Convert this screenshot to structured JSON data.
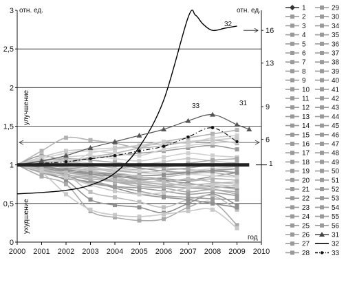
{
  "chart_data": {
    "type": "line",
    "x_ticks": [
      "2000",
      "2001",
      "2002",
      "2003",
      "2004",
      "2005",
      "2006",
      "2007",
      "2008",
      "2009",
      "2010"
    ],
    "xlabel": "год",
    "left_unit_label": "отн. ед.",
    "right_unit_label": "отн. ед.",
    "left_ylim": [
      0,
      3
    ],
    "left_ticks": [
      "0",
      "0,5",
      "1",
      "1,5",
      "2",
      "2,5",
      "3"
    ],
    "right_ticks": [
      "16",
      "13",
      "9",
      "6"
    ],
    "right_tick_values": [
      16,
      13,
      9,
      6
    ],
    "label_up": "улучшение",
    "label_down": "ухудшение",
    "baseline_label": "1",
    "annotations": [
      "32",
      "33",
      "31"
    ],
    "grid": "horizontal",
    "legend_position": "right",
    "legend_items": [
      "1",
      "2",
      "3",
      "4",
      "5",
      "6",
      "7",
      "8",
      "9",
      "10",
      "11",
      "12",
      "13",
      "14",
      "15",
      "16",
      "17",
      "18",
      "19",
      "20",
      "21",
      "22",
      "23",
      "24",
      "25",
      "26",
      "27",
      "28",
      "29",
      "30",
      "34",
      "35",
      "36",
      "37",
      "38",
      "39",
      "40",
      "41",
      "42",
      "43",
      "44",
      "45",
      "46",
      "47",
      "48",
      "49",
      "50",
      "51",
      "52",
      "53",
      "54",
      "55",
      "56",
      "31",
      "32",
      "33"
    ],
    "series": [
      {
        "name": "32",
        "axis": "right",
        "x": [
          2000,
          2001,
          2002,
          2003,
          2004,
          2005,
          2006,
          2007,
          2007.3,
          2007.6,
          2008,
          2008.5,
          2009
        ],
        "values": [
          1.0,
          1.12,
          1.32,
          1.8,
          2.9,
          5.3,
          9.6,
          17.2,
          17.4,
          16.6,
          16.0,
          16.2,
          16.4
        ]
      },
      {
        "name": "33",
        "x": [
          2000,
          2001,
          2002,
          2003,
          2004,
          2005,
          2006,
          2007,
          2008,
          2009
        ],
        "values": [
          1.0,
          1.02,
          1.04,
          1.08,
          1.12,
          1.18,
          1.24,
          1.36,
          1.48,
          1.3
        ]
      },
      {
        "name": "31",
        "x": [
          2000,
          2001,
          2002,
          2003,
          2004,
          2005,
          2006,
          2007,
          2008,
          2009,
          2009.5
        ],
        "values": [
          1.0,
          1.05,
          1.12,
          1.22,
          1.3,
          1.38,
          1.46,
          1.57,
          1.65,
          1.52,
          1.46
        ]
      },
      {
        "name": "1",
        "x": [
          2000,
          2009.5
        ],
        "values": [
          1.0,
          1.0
        ]
      },
      {
        "name": "2",
        "x": [
          2000,
          2001,
          2002,
          2003,
          2004,
          2005,
          2006,
          2007,
          2008,
          2009
        ],
        "values": [
          1.0,
          0.98,
          1.02,
          1.1,
          1.15,
          1.22,
          1.3,
          1.35,
          1.4,
          1.45
        ]
      },
      {
        "name": "3",
        "x": [
          2000,
          2001,
          2002,
          2003,
          2004,
          2005,
          2006,
          2007,
          2008,
          2009
        ],
        "values": [
          1.0,
          1.05,
          1.0,
          1.15,
          1.2,
          1.25,
          1.3,
          1.28,
          1.35,
          1.38
        ]
      },
      {
        "name": "4",
        "x": [
          2000,
          2001,
          2002,
          2003,
          2004,
          2005,
          2006,
          2007,
          2008,
          2009
        ],
        "values": [
          1.0,
          0.9,
          0.8,
          0.55,
          0.48,
          0.45,
          0.38,
          0.5,
          0.62,
          0.48
        ]
      },
      {
        "name": "5",
        "x": [
          2000,
          2001,
          2002,
          2003,
          2004,
          2005,
          2006,
          2007,
          2008,
          2009
        ],
        "values": [
          1.0,
          0.95,
          0.88,
          0.65,
          0.58,
          0.52,
          0.45,
          0.55,
          0.6,
          0.42
        ]
      },
      {
        "name": "6",
        "x": [
          2000,
          2001,
          2002,
          2003,
          2004,
          2005,
          2006,
          2007,
          2008,
          2009
        ],
        "values": [
          1.0,
          0.85,
          0.75,
          0.4,
          0.32,
          0.28,
          0.3,
          0.45,
          0.52,
          0.22
        ]
      },
      {
        "name": "7",
        "x": [
          2000,
          2001,
          2002,
          2003,
          2004,
          2005,
          2006,
          2007,
          2008,
          2009
        ],
        "values": [
          1.0,
          0.9,
          0.62,
          0.42,
          0.35,
          0.33,
          0.36,
          0.4,
          0.42,
          0.18
        ]
      },
      {
        "name": "8",
        "x": [
          2000,
          2001,
          2002,
          2003,
          2004,
          2005,
          2006,
          2007,
          2008,
          2009
        ],
        "values": [
          1.0,
          1.12,
          1.05,
          1.08,
          1.12,
          1.15,
          1.18,
          1.22,
          1.25,
          1.2
        ]
      },
      {
        "name": "9",
        "x": [
          2000,
          2001,
          2002,
          2003,
          2004,
          2005,
          2006,
          2007,
          2008,
          2009
        ],
        "values": [
          1.0,
          1.18,
          1.35,
          1.32,
          1.28,
          1.22,
          1.25,
          1.3,
          1.32,
          1.28
        ]
      },
      {
        "name": "10",
        "x": [
          2000,
          2001,
          2002,
          2003,
          2004,
          2005,
          2006,
          2007,
          2008,
          2009
        ],
        "values": [
          1.0,
          1.02,
          0.97,
          0.95,
          0.92,
          0.9,
          0.88,
          0.92,
          0.95,
          0.98
        ]
      },
      {
        "name": "11",
        "x": [
          2000,
          2001,
          2002,
          2003,
          2004,
          2005,
          2006,
          2007,
          2008,
          2009
        ],
        "values": [
          1.0,
          0.98,
          0.94,
          0.9,
          0.86,
          0.84,
          0.82,
          0.8,
          0.85,
          0.9
        ]
      },
      {
        "name": "12",
        "x": [
          2000,
          2001,
          2002,
          2003,
          2004,
          2005,
          2006,
          2007,
          2008,
          2009
        ],
        "values": [
          1.0,
          1.0,
          0.96,
          0.92,
          0.88,
          0.8,
          0.78,
          0.82,
          0.78,
          0.75
        ]
      },
      {
        "name": "13",
        "x": [
          2000,
          2001,
          2002,
          2003,
          2004,
          2005,
          2006,
          2007,
          2008,
          2009
        ],
        "values": [
          1.0,
          0.95,
          0.9,
          0.85,
          0.78,
          0.72,
          0.7,
          0.65,
          0.68,
          0.62
        ]
      },
      {
        "name": "14",
        "x": [
          2000,
          2001,
          2002,
          2003,
          2004,
          2005,
          2006,
          2007,
          2008,
          2009
        ],
        "values": [
          1.0,
          1.03,
          1.06,
          1.02,
          0.98,
          1.0,
          1.04,
          1.08,
          1.05,
          1.02
        ]
      },
      {
        "name": "15",
        "x": [
          2000,
          2001,
          2002,
          2003,
          2004,
          2005,
          2006,
          2007,
          2008,
          2009
        ],
        "values": [
          1.0,
          0.92,
          0.88,
          0.8,
          0.72,
          0.66,
          0.6,
          0.58,
          0.56,
          0.55
        ]
      },
      {
        "name": "16",
        "x": [
          2000,
          2001,
          2002,
          2003,
          2004,
          2005,
          2006,
          2007,
          2008,
          2009
        ],
        "values": [
          1.0,
          0.97,
          0.93,
          0.88,
          0.82,
          0.8,
          0.84,
          0.88,
          0.9,
          0.85
        ]
      },
      {
        "name": "17",
        "x": [
          2000,
          2001,
          2002,
          2003,
          2004,
          2005,
          2006,
          2007,
          2008,
          2009
        ],
        "values": [
          1.0,
          1.06,
          1.1,
          1.12,
          1.08,
          1.05,
          1.1,
          1.15,
          1.12,
          1.1
        ]
      },
      {
        "name": "18",
        "x": [
          2000,
          2001,
          2002,
          2003,
          2004,
          2005,
          2006,
          2007,
          2008,
          2009
        ],
        "values": [
          1.0,
          0.9,
          0.82,
          0.78,
          0.7,
          0.62,
          0.58,
          0.55,
          0.5,
          0.45
        ]
      },
      {
        "name": "19",
        "x": [
          2000,
          2001,
          2002,
          2003,
          2004,
          2005,
          2006,
          2007,
          2008,
          2009
        ],
        "values": [
          1.0,
          0.96,
          0.95,
          0.93,
          0.95,
          0.98,
          0.96,
          0.94,
          0.92,
          0.95
        ]
      },
      {
        "name": "20",
        "x": [
          2000,
          2001,
          2002,
          2003,
          2004,
          2005,
          2006,
          2007,
          2008,
          2009
        ],
        "values": [
          1.0,
          1.04,
          1.0,
          0.97,
          0.93,
          0.9,
          0.93,
          0.96,
          1.0,
          1.03
        ]
      },
      {
        "name": "21",
        "x": [
          2000,
          2001,
          2002,
          2003,
          2004,
          2005,
          2006,
          2007,
          2008,
          2009
        ],
        "values": [
          1.0,
          0.99,
          0.97,
          0.9,
          0.84,
          0.78,
          0.74,
          0.7,
          0.72,
          0.68
        ]
      },
      {
        "name": "22",
        "x": [
          2000,
          2001,
          2002,
          2003,
          2004,
          2005,
          2006,
          2007,
          2008,
          2009
        ],
        "values": [
          1.0,
          0.94,
          0.86,
          0.76,
          0.72,
          0.7,
          0.66,
          0.62,
          0.64,
          0.6
        ]
      },
      {
        "name": "23",
        "x": [
          2000,
          2001,
          2002,
          2003,
          2004,
          2005,
          2006,
          2007,
          2008,
          2009
        ],
        "values": [
          1.0,
          0.98,
          0.92,
          0.86,
          0.8,
          0.76,
          0.72,
          0.78,
          0.82,
          0.8
        ]
      },
      {
        "name": "24",
        "x": [
          2000,
          2001,
          2002,
          2003,
          2004,
          2005,
          2006,
          2007,
          2008,
          2009
        ],
        "values": [
          1.0,
          1.08,
          1.15,
          1.18,
          1.15,
          1.12,
          1.2,
          1.25,
          1.28,
          1.3
        ]
      },
      {
        "name": "25",
        "x": [
          2000,
          2001,
          2002,
          2003,
          2004,
          2005,
          2006,
          2007,
          2008,
          2009
        ],
        "values": [
          1.0,
          0.95,
          0.92,
          0.88,
          0.85,
          0.82,
          0.8,
          0.76,
          0.72,
          0.7
        ]
      },
      {
        "name": "26",
        "x": [
          2000,
          2001,
          2002,
          2003,
          2004,
          2005,
          2006,
          2007,
          2008,
          2009
        ],
        "values": [
          1.0,
          1.02,
          1.04,
          1.0,
          0.96,
          0.94,
          0.97,
          1.0,
          1.02,
          1.0
        ]
      },
      {
        "name": "27",
        "x": [
          2000,
          2001,
          2002,
          2003,
          2004,
          2005,
          2006,
          2007,
          2008,
          2009
        ],
        "values": [
          1.0,
          0.9,
          0.85,
          0.82,
          0.78,
          0.75,
          0.72,
          0.7,
          0.68,
          0.65
        ]
      },
      {
        "name": "28",
        "x": [
          2000,
          2001,
          2002,
          2003,
          2004,
          2005,
          2006,
          2007,
          2008,
          2009
        ],
        "values": [
          1.0,
          1.1,
          1.18,
          1.2,
          1.22,
          1.25,
          1.27,
          1.3,
          1.32,
          1.35
        ]
      },
      {
        "name": "29",
        "x": [
          2000,
          2001,
          2002,
          2003,
          2004,
          2005,
          2006,
          2007,
          2008,
          2009
        ],
        "values": [
          1.0,
          0.97,
          0.95,
          0.98,
          1.0,
          0.96,
          0.92,
          0.9,
          0.93,
          0.95
        ]
      },
      {
        "name": "30",
        "x": [
          2000,
          2001,
          2002,
          2003,
          2004,
          2005,
          2006,
          2007,
          2008,
          2009
        ],
        "values": [
          1.0,
          0.93,
          0.87,
          0.84,
          0.8,
          0.78,
          0.75,
          0.74,
          0.76,
          0.78
        ]
      },
      {
        "name": "34",
        "x": [
          2000,
          2001,
          2002,
          2003,
          2004,
          2005,
          2006,
          2007,
          2008,
          2009
        ],
        "values": [
          1.0,
          1.01,
          0.99,
          0.96,
          0.94,
          0.92,
          0.9,
          0.88,
          0.86,
          0.84
        ]
      },
      {
        "name": "35",
        "x": [
          2000,
          2001,
          2002,
          2003,
          2004,
          2005,
          2006,
          2007,
          2008,
          2009
        ],
        "values": [
          1.0,
          0.97,
          0.93,
          0.9,
          0.88,
          0.86,
          0.87,
          0.9,
          0.92,
          0.9
        ]
      },
      {
        "name": "36",
        "x": [
          2000,
          2001,
          2002,
          2003,
          2004,
          2005,
          2006,
          2007,
          2008,
          2009
        ],
        "values": [
          1.0,
          0.95,
          0.9,
          0.95,
          0.9,
          0.85,
          0.78,
          0.72,
          0.7,
          0.74
        ]
      },
      {
        "name": "37",
        "x": [
          2000,
          2001,
          2002,
          2003,
          2004,
          2005,
          2006,
          2007,
          2008,
          2009
        ],
        "values": [
          1.0,
          1.05,
          1.08,
          1.06,
          1.03,
          1.0,
          0.98,
          1.02,
          1.06,
          1.08
        ]
      },
      {
        "name": "38",
        "x": [
          2000,
          2001,
          2002,
          2003,
          2004,
          2005,
          2006,
          2007,
          2008,
          2009
        ],
        "values": [
          1.0,
          0.92,
          0.84,
          0.74,
          0.66,
          0.62,
          0.64,
          0.7,
          0.74,
          0.72
        ]
      }
    ]
  }
}
